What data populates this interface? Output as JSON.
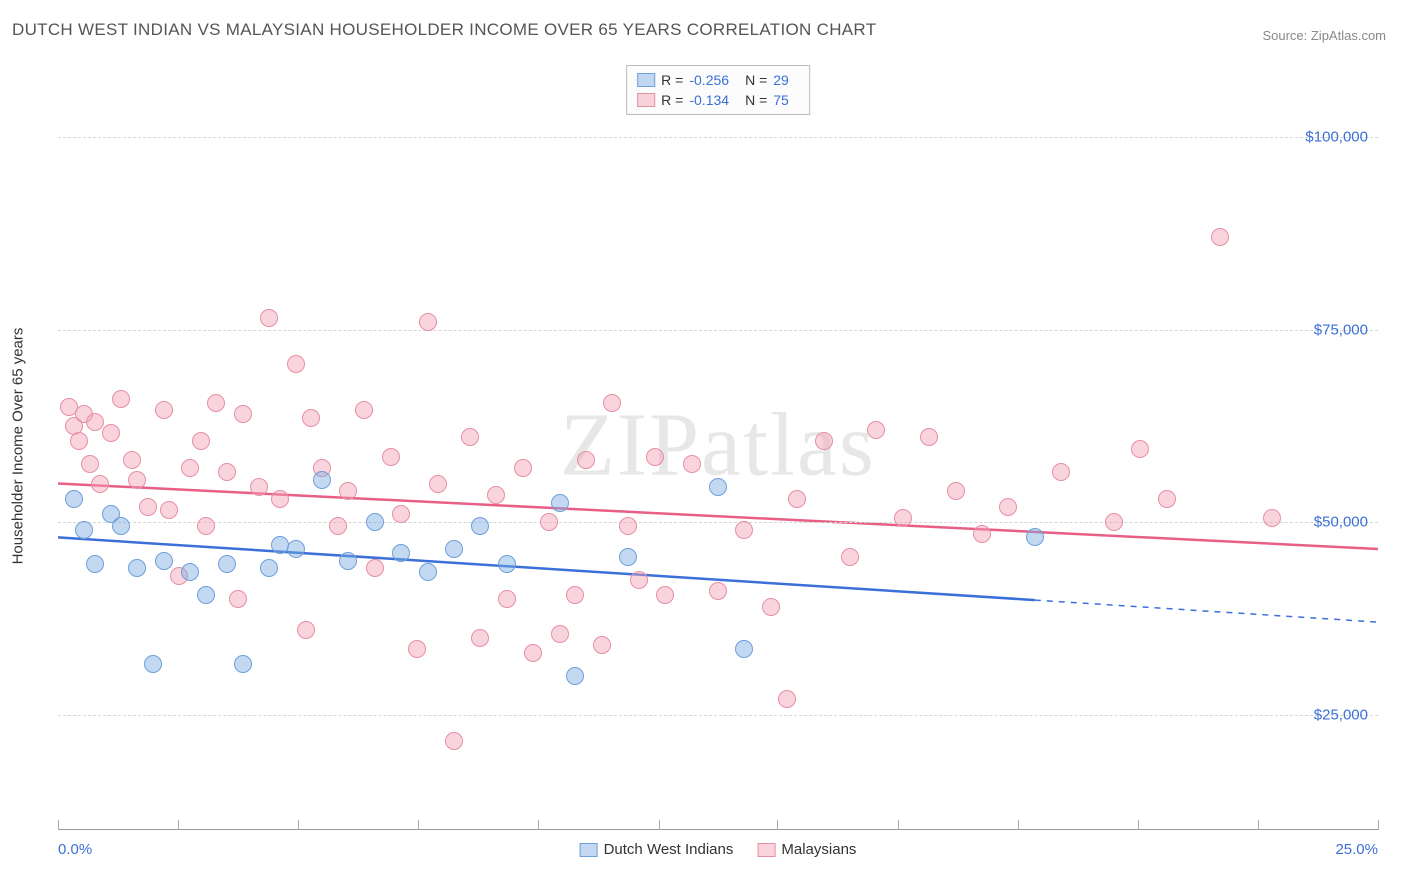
{
  "title": "DUTCH WEST INDIAN VS MALAYSIAN HOUSEHOLDER INCOME OVER 65 YEARS CORRELATION CHART",
  "source": "Source: ZipAtlas.com",
  "watermark": "ZIPatlas",
  "y_axis_title": "Householder Income Over 65 years",
  "x_axis": {
    "min": 0.0,
    "max": 25.0,
    "label_min": "0.0%",
    "label_max": "25.0%",
    "tick_positions_pct": [
      0,
      9.1,
      18.2,
      27.3,
      36.4,
      45.5,
      54.5,
      63.6,
      72.7,
      81.8,
      90.9,
      100
    ]
  },
  "y_axis": {
    "min": 10000,
    "max": 110000,
    "gridlines": [
      {
        "value": 25000,
        "label": "$25,000"
      },
      {
        "value": 50000,
        "label": "$50,000"
      },
      {
        "value": 75000,
        "label": "$75,000"
      },
      {
        "value": 100000,
        "label": "$100,000"
      }
    ]
  },
  "series": [
    {
      "id": "dutch",
      "label": "Dutch West Indians",
      "fill_color": "rgba(120,170,225,0.45)",
      "stroke_color": "#6f9fd9",
      "trend_color": "#3b6fd9",
      "trend_stroke_width": 2.5,
      "point_radius": 9,
      "R": "-0.256",
      "N": "29",
      "trend": {
        "start": {
          "x": 0.0,
          "y": 48000
        },
        "end": {
          "x": 25.0,
          "y": 37000
        },
        "solid_until_x": 18.5
      },
      "points": [
        {
          "x": 0.3,
          "y": 53000
        },
        {
          "x": 0.5,
          "y": 49000
        },
        {
          "x": 0.7,
          "y": 44500
        },
        {
          "x": 1.0,
          "y": 51000
        },
        {
          "x": 1.2,
          "y": 49500
        },
        {
          "x": 1.5,
          "y": 44000
        },
        {
          "x": 1.8,
          "y": 31500
        },
        {
          "x": 2.0,
          "y": 45000
        },
        {
          "x": 2.5,
          "y": 43500
        },
        {
          "x": 2.8,
          "y": 40500
        },
        {
          "x": 3.2,
          "y": 44500
        },
        {
          "x": 3.5,
          "y": 31500
        },
        {
          "x": 4.0,
          "y": 44000
        },
        {
          "x": 4.2,
          "y": 47000
        },
        {
          "x": 4.5,
          "y": 46500
        },
        {
          "x": 5.0,
          "y": 55500
        },
        {
          "x": 5.5,
          "y": 45000
        },
        {
          "x": 6.0,
          "y": 50000
        },
        {
          "x": 6.5,
          "y": 46000
        },
        {
          "x": 7.0,
          "y": 43500
        },
        {
          "x": 7.5,
          "y": 46500
        },
        {
          "x": 8.0,
          "y": 49500
        },
        {
          "x": 8.5,
          "y": 44500
        },
        {
          "x": 9.5,
          "y": 52500
        },
        {
          "x": 9.8,
          "y": 30000
        },
        {
          "x": 10.8,
          "y": 45500
        },
        {
          "x": 12.5,
          "y": 54500
        },
        {
          "x": 13.0,
          "y": 33500
        },
        {
          "x": 18.5,
          "y": 48000
        }
      ]
    },
    {
      "id": "malay",
      "label": "Malaysians",
      "fill_color": "rgba(245,160,180,0.45)",
      "stroke_color": "#e58fa5",
      "trend_color": "#e85f85",
      "trend_stroke_width": 2.5,
      "point_radius": 9,
      "R": "-0.134",
      "N": "75",
      "trend": {
        "start": {
          "x": 0.0,
          "y": 55000
        },
        "end": {
          "x": 25.0,
          "y": 46500
        },
        "solid_until_x": 25.0
      },
      "points": [
        {
          "x": 0.2,
          "y": 65000
        },
        {
          "x": 0.3,
          "y": 62500
        },
        {
          "x": 0.4,
          "y": 60500
        },
        {
          "x": 0.5,
          "y": 64000
        },
        {
          "x": 0.6,
          "y": 57500
        },
        {
          "x": 0.7,
          "y": 63000
        },
        {
          "x": 0.8,
          "y": 55000
        },
        {
          "x": 1.0,
          "y": 61500
        },
        {
          "x": 1.2,
          "y": 66000
        },
        {
          "x": 1.4,
          "y": 58000
        },
        {
          "x": 1.5,
          "y": 55500
        },
        {
          "x": 1.7,
          "y": 52000
        },
        {
          "x": 2.0,
          "y": 64500
        },
        {
          "x": 2.1,
          "y": 51500
        },
        {
          "x": 2.3,
          "y": 43000
        },
        {
          "x": 2.5,
          "y": 57000
        },
        {
          "x": 2.7,
          "y": 60500
        },
        {
          "x": 2.8,
          "y": 49500
        },
        {
          "x": 3.0,
          "y": 65500
        },
        {
          "x": 3.2,
          "y": 56500
        },
        {
          "x": 3.4,
          "y": 40000
        },
        {
          "x": 3.5,
          "y": 64000
        },
        {
          "x": 3.8,
          "y": 54500
        },
        {
          "x": 4.0,
          "y": 76500
        },
        {
          "x": 4.2,
          "y": 53000
        },
        {
          "x": 4.5,
          "y": 70500
        },
        {
          "x": 4.7,
          "y": 36000
        },
        {
          "x": 4.8,
          "y": 63500
        },
        {
          "x": 5.0,
          "y": 57000
        },
        {
          "x": 5.3,
          "y": 49500
        },
        {
          "x": 5.5,
          "y": 54000
        },
        {
          "x": 5.8,
          "y": 64500
        },
        {
          "x": 6.0,
          "y": 44000
        },
        {
          "x": 6.3,
          "y": 58500
        },
        {
          "x": 6.5,
          "y": 51000
        },
        {
          "x": 6.8,
          "y": 33500
        },
        {
          "x": 7.0,
          "y": 76000
        },
        {
          "x": 7.2,
          "y": 55000
        },
        {
          "x": 7.5,
          "y": 21500
        },
        {
          "x": 7.8,
          "y": 61000
        },
        {
          "x": 8.0,
          "y": 35000
        },
        {
          "x": 8.3,
          "y": 53500
        },
        {
          "x": 8.5,
          "y": 40000
        },
        {
          "x": 8.8,
          "y": 57000
        },
        {
          "x": 9.0,
          "y": 33000
        },
        {
          "x": 9.3,
          "y": 50000
        },
        {
          "x": 9.5,
          "y": 35500
        },
        {
          "x": 9.8,
          "y": 40500
        },
        {
          "x": 10.0,
          "y": 58000
        },
        {
          "x": 10.3,
          "y": 34000
        },
        {
          "x": 10.5,
          "y": 65500
        },
        {
          "x": 10.8,
          "y": 49500
        },
        {
          "x": 11.0,
          "y": 42500
        },
        {
          "x": 11.3,
          "y": 58500
        },
        {
          "x": 11.5,
          "y": 40500
        },
        {
          "x": 12.0,
          "y": 57500
        },
        {
          "x": 12.5,
          "y": 41000
        },
        {
          "x": 13.0,
          "y": 49000
        },
        {
          "x": 13.5,
          "y": 39000
        },
        {
          "x": 13.8,
          "y": 27000
        },
        {
          "x": 14.0,
          "y": 53000
        },
        {
          "x": 14.5,
          "y": 60500
        },
        {
          "x": 15.0,
          "y": 45500
        },
        {
          "x": 15.5,
          "y": 62000
        },
        {
          "x": 16.0,
          "y": 50500
        },
        {
          "x": 16.5,
          "y": 61000
        },
        {
          "x": 17.0,
          "y": 54000
        },
        {
          "x": 17.5,
          "y": 48500
        },
        {
          "x": 18.0,
          "y": 52000
        },
        {
          "x": 19.0,
          "y": 56500
        },
        {
          "x": 20.0,
          "y": 50000
        },
        {
          "x": 20.5,
          "y": 59500
        },
        {
          "x": 21.0,
          "y": 53000
        },
        {
          "x": 22.0,
          "y": 87000
        },
        {
          "x": 23.0,
          "y": 50500
        }
      ]
    }
  ],
  "bottom_legend": [
    {
      "label": "Dutch West Indians",
      "fill": "rgba(120,170,225,0.45)",
      "stroke": "#6f9fd9"
    },
    {
      "label": "Malaysians",
      "fill": "rgba(245,160,180,0.45)",
      "stroke": "#e58fa5"
    }
  ],
  "labels": {
    "R": "R =",
    "N": "N ="
  }
}
